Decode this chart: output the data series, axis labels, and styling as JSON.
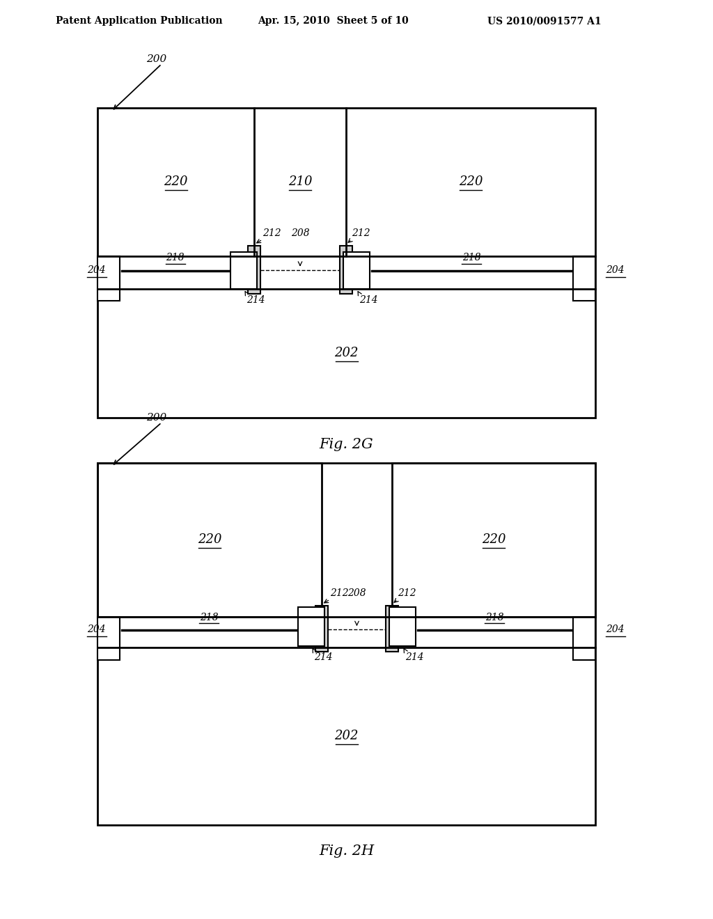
{
  "bg_color": "#ffffff",
  "line_color": "#000000",
  "header_left": "Patent Application Publication",
  "header_mid": "Apr. 15, 2010  Sheet 5 of 10",
  "header_right": "US 2010/0091577 A1",
  "fig2g_caption": "Fig. 2G",
  "fig2h_caption": "Fig. 2H",
  "ref_200": "200",
  "ref_202": "202",
  "ref_204": "204",
  "ref_208": "208",
  "ref_210": "210",
  "ref_212": "212",
  "ref_214": "214",
  "ref_218": "218",
  "ref_220": "220"
}
